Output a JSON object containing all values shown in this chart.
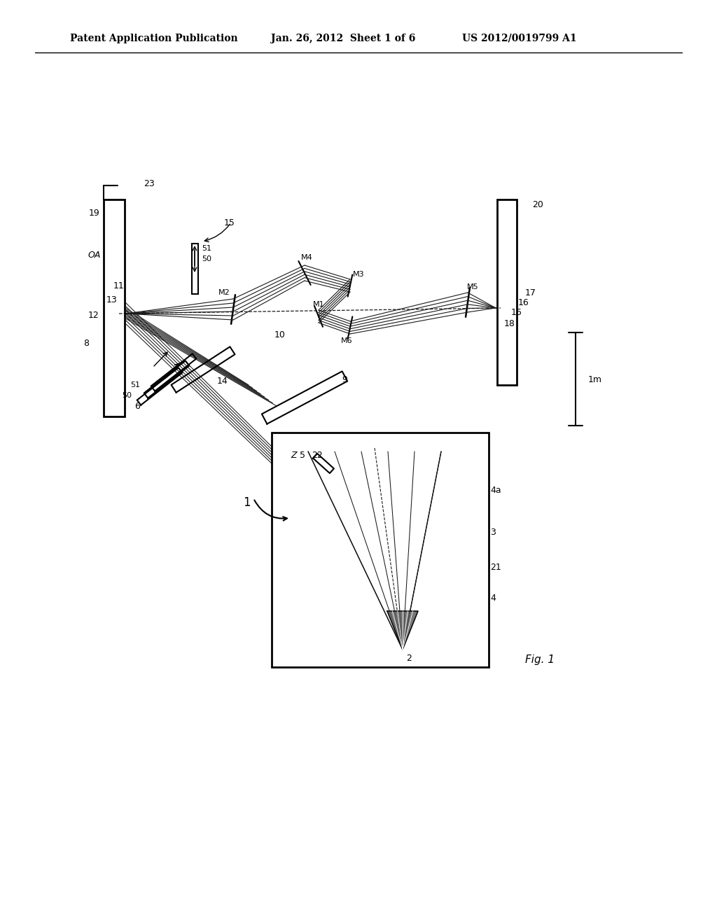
{
  "title_left": "Patent Application Publication",
  "title_center": "Jan. 26, 2012  Sheet 1 of 6",
  "title_right": "US 2012/0019799 A1",
  "fig_label": "Fig. 1",
  "background": "#ffffff",
  "line_color": "#000000",
  "text_color": "#000000"
}
